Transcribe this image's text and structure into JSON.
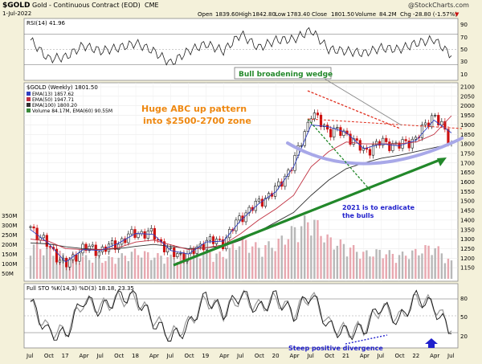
{
  "header": {
    "symbol": "$GOLD",
    "name": "Gold - Continuous Contract (EOD)",
    "exchange": "CME",
    "date": "1-Jul-2022",
    "open_label": "Open",
    "open": "1839.60",
    "high_label": "High",
    "high": "1842.80",
    "low_label": "Low",
    "low": "1783.40",
    "close_label": "Close",
    "close": "1801.50",
    "volume_label": "Volume",
    "volume": "84.2M",
    "chg_label": "Chg",
    "chg": "-28.80 (-1.57%)",
    "chg_arrow": "▼",
    "logo": "@StockCharts.com"
  },
  "rsi_panel": {
    "label": "RSI(14) 41.96",
    "ticks": [
      "90",
      "70",
      "50",
      "30",
      "10"
    ]
  },
  "price_panel": {
    "title": "$GOLD (Weekly) 1801.50",
    "legend": [
      {
        "text": "EMA(13) 1857.62",
        "color": "#3040c0"
      },
      {
        "text": "EMA(50) 1947.71",
        "color": "#c03040"
      },
      {
        "text": "EMA(100) 1800.20",
        "color": "#303030"
      },
      {
        "text": "Volume 84.17M, EMA(60) 90.55M",
        "color": "#3a8a3a"
      }
    ],
    "volume_ticks": [
      "350M",
      "300M",
      "250M",
      "200M",
      "150M",
      "100M",
      "50M"
    ]
  },
  "annotations": {
    "title_box": "Bull broadening wedge",
    "abc_line1": "Huge ABC up pattern",
    "abc_line2": "into $2500-2700 zone",
    "bulls_line1": "2021 is to eradicate",
    "bulls_line2": "the bulls",
    "divergence": "Steep positive divergence"
  },
  "sto_panel": {
    "label": "Full STO %K(14,3) %D(3) 18.18, 23.35",
    "ticks": [
      "80",
      "50",
      "20"
    ]
  },
  "x_axis": {
    "labels": [
      "Jul",
      "Oct",
      "17",
      "Apr",
      "Jul",
      "Oct",
      "18",
      "Apr",
      "Jul",
      "Oct",
      "19",
      "Apr",
      "Jul",
      "Oct",
      "20",
      "Apr",
      "Jul",
      "Oct",
      "21",
      "Apr",
      "Jul",
      "Oct",
      "22",
      "Apr",
      "Jul"
    ]
  },
  "colors": {
    "background": "#f4f1da",
    "plot_bg": "#ffffff",
    "up_candle": "#1a1a1a",
    "down_candle": "#cc1111",
    "ema13": "#3040c0",
    "ema50": "#c03040",
    "ema100": "#303030",
    "trend_green": "#22882a",
    "arc": "#a8a8e8",
    "wedge_red": "#e03020",
    "annot_orange": "#ee8811",
    "annot_blue": "#2020cc",
    "rsi_fill": "#999999"
  },
  "chart_data": [
    {
      "type": "line",
      "name_text": "RSI(14)",
      "value": 41.96,
      "ylim": [
        10,
        90
      ],
      "x": [
        "2016-07",
        "2016-10",
        "2017-01",
        "2017-04",
        "2017-07",
        "2017-10",
        "2018-01",
        "2018-04",
        "2018-07",
        "2018-10",
        "2019-01",
        "2019-04",
        "2019-07",
        "2019-10",
        "2020-01",
        "2020-04",
        "2020-07",
        "2020-10",
        "2021-01",
        "2021-04",
        "2021-07",
        "2021-10",
        "2022-01",
        "2022-04",
        "2022-07"
      ],
      "values": [
        62,
        38,
        40,
        55,
        48,
        52,
        58,
        48,
        32,
        48,
        57,
        48,
        70,
        52,
        62,
        63,
        75,
        50,
        48,
        45,
        52,
        50,
        58,
        63,
        42
      ]
    },
    {
      "type": "candlestick",
      "title": "$GOLD (Weekly) 1801.50",
      "ylim": [
        1100,
        2100
      ],
      "y_ticks": [
        2100,
        2050,
        2000,
        1950,
        1900,
        1850,
        1800,
        1750,
        1700,
        1650,
        1600,
        1550,
        1500,
        1450,
        1400,
        1350,
        1300,
        1250,
        1200,
        1150
      ],
      "x": [
        "2016-07",
        "2016-10",
        "2017-01",
        "2017-04",
        "2017-07",
        "2017-10",
        "2018-01",
        "2018-04",
        "2018-07",
        "2018-10",
        "2019-01",
        "2019-04",
        "2019-07",
        "2019-10",
        "2020-01",
        "2020-04",
        "2020-07",
        "2020-10",
        "2021-01",
        "2021-04",
        "2021-07",
        "2021-10",
        "2022-01",
        "2022-04",
        "2022-07"
      ],
      "close": [
        1365,
        1265,
        1160,
        1255,
        1240,
        1280,
        1335,
        1325,
        1225,
        1215,
        1290,
        1285,
        1420,
        1490,
        1560,
        1700,
        1960,
        1870,
        1855,
        1760,
        1810,
        1790,
        1830,
        1960,
        1801
      ],
      "ema13": [
        1350,
        1280,
        1180,
        1245,
        1240,
        1278,
        1330,
        1325,
        1240,
        1222,
        1285,
        1290,
        1400,
        1485,
        1550,
        1680,
        1900,
        1890,
        1860,
        1775,
        1800,
        1790,
        1820,
        1925,
        1858
      ],
      "ema50": [
        1300,
        1290,
        1250,
        1245,
        1245,
        1255,
        1285,
        1295,
        1270,
        1245,
        1255,
        1270,
        1330,
        1400,
        1460,
        1530,
        1680,
        1760,
        1810,
        1800,
        1800,
        1800,
        1810,
        1850,
        1948
      ],
      "ema100": [
        1280,
        1275,
        1260,
        1250,
        1245,
        1250,
        1262,
        1272,
        1262,
        1250,
        1255,
        1262,
        1295,
        1340,
        1390,
        1440,
        1530,
        1610,
        1670,
        1700,
        1725,
        1740,
        1760,
        1780,
        1800
      ],
      "volume_ylim": [
        0,
        350
      ],
      "volume_M": [
        180,
        150,
        120,
        110,
        100,
        110,
        140,
        120,
        110,
        130,
        140,
        120,
        200,
        160,
        180,
        250,
        310,
        200,
        170,
        130,
        140,
        120,
        140,
        170,
        84.17
      ],
      "volume_ema60_M": 90.55
    },
    {
      "type": "line",
      "name_text": "Full STO %K(14,3) %D(3)",
      "ylim": [
        0,
        100
      ],
      "k": [
        75,
        20,
        15,
        80,
        60,
        85,
        85,
        40,
        10,
        30,
        85,
        55,
        90,
        60,
        85,
        50,
        90,
        30,
        20,
        25,
        70,
        40,
        85,
        65,
        18.18
      ],
      "d": [
        70,
        25,
        20,
        75,
        65,
        80,
        80,
        45,
        15,
        35,
        80,
        55,
        85,
        65,
        80,
        55,
        88,
        35,
        22,
        28,
        65,
        45,
        80,
        70,
        23.35
      ]
    }
  ]
}
